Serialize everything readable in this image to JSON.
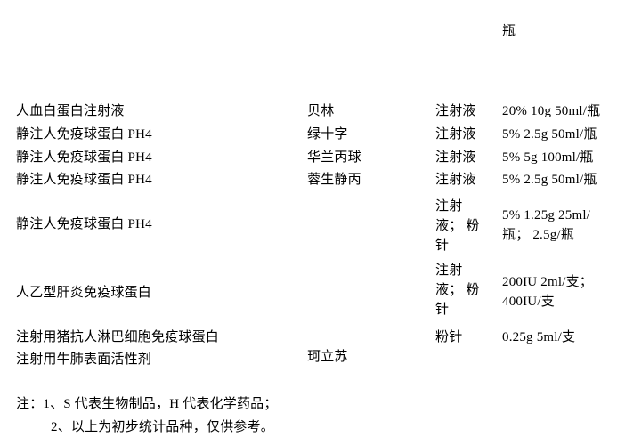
{
  "page": {
    "background_color": "#ffffff",
    "text_color": "#000000"
  },
  "overflow_fragment": {
    "spec_tail": "瓶"
  },
  "table": {
    "rows": [
      {
        "name": "人血白蛋白注射液",
        "brand": "贝林",
        "form": "注射液",
        "spec": "20% 10g 50ml/瓶"
      },
      {
        "name": "静注人免疫球蛋白 PH4",
        "brand": "绿十字",
        "form": "注射液",
        "spec": "5% 2.5g 50ml/瓶"
      },
      {
        "name": "静注人免疫球蛋白 PH4",
        "brand": "华兰丙球",
        "form": "注射液",
        "spec": "5% 5g 100ml/瓶"
      },
      {
        "name": "静注人免疫球蛋白 PH4",
        "brand": "蓉生静丙",
        "form": "注射液",
        "spec": "5% 2.5g 50ml/瓶"
      },
      {
        "name": "静注人免疫球蛋白 PH4",
        "brand": "",
        "form": [
          "注射",
          "液； 粉",
          "针"
        ],
        "spec": [
          "5% 1.25g 25ml/",
          "瓶； 2.5g/瓶"
        ]
      },
      {
        "name": "人乙型肝炎免疫球蛋白",
        "brand": "",
        "form": [
          "注射",
          "液； 粉",
          "针"
        ],
        "spec": [
          "200IU 2ml/支；",
          "400IU/支"
        ]
      },
      {
        "name": "注射用猪抗人淋巴细胞免疫球蛋白",
        "brand": "",
        "form": "粉针",
        "spec": "0.25g 5ml/支"
      },
      {
        "name": "注射用牛肺表面活性剂",
        "brand": "珂立苏",
        "form": "",
        "spec": ""
      }
    ]
  },
  "notes": {
    "lines": [
      "注：1、S 代表生物制品，H 代表化学药品；",
      "2、以上为初步统计品种，仅供参考。"
    ]
  }
}
